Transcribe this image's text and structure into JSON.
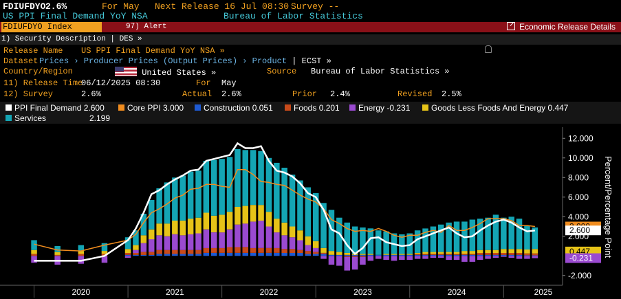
{
  "header": {
    "ticker": "FDIUFDYO",
    "last_value": "2.6%",
    "for_label": "For May",
    "next_release": "Next Release 16 Jul 08:30",
    "survey": "Survey --",
    "title": "US PPI Final Demand YoY NSA",
    "source": "Bureau of Labor Statistics"
  },
  "toolbar": {
    "index": "FDIUFDYO Index",
    "alert_num": "97)",
    "alert": "Alert",
    "economic_release": "Economic Release Details"
  },
  "security": {
    "desc": "1) Security Description  | DES »"
  },
  "info": {
    "release_name_label": "Release Name",
    "release_name": "US PPI Final Demand YoY NSA »",
    "dataset_label": "Dataset",
    "dataset_path": "Prices › Producer Prices (Output Prices) › Product",
    "dataset_ecst": "| ECST »",
    "country_label": "Country/Region",
    "country": "United States »",
    "source_label": "Source",
    "source": "Bureau of Labor Statistics »",
    "release_time_label": "11) Release Time",
    "release_time": "06/12/2025 08:30",
    "for_label": "For",
    "for_value": "May",
    "survey_label": "12) Survey",
    "survey_value": "2.6%",
    "actual_label": "Actual",
    "actual_value": "2.6%",
    "prior_label": "Prior",
    "prior_value": "2.4%",
    "revised_label": "Revised",
    "revised_value": "2.5%"
  },
  "legend": [
    {
      "label": "PPI Final Demand",
      "value": "2.600",
      "color": "#ffffff"
    },
    {
      "label": "Core PPI",
      "value": "3.000",
      "color": "#f08c1e"
    },
    {
      "label": "Construction",
      "value": "0.051",
      "color": "#1e5ad2"
    },
    {
      "label": "Foods",
      "value": "0.201",
      "color": "#c84a1a"
    },
    {
      "label": "Energy",
      "value": "-0.231",
      "color": "#9a4ad0"
    },
    {
      "label": "Goods Less Foods And Energy",
      "value": "0.447",
      "color": "#e6c318"
    },
    {
      "label": "Services",
      "value": "2.199",
      "color": "#14a5b4"
    }
  ],
  "chart_data": {
    "type": "bar",
    "ylabel": "Percent/Percentage Point",
    "ylim": [
      -3.0,
      13.0
    ],
    "yticks": [
      "12.000",
      "10.000",
      "8.000",
      "6.000",
      "4.000",
      "2.000",
      "-2.000"
    ],
    "xticks": [
      "2020",
      "2021",
      "2022",
      "2023",
      "2024",
      "2025"
    ],
    "x": [
      "2020-01",
      "2020-04",
      "2020-07",
      "2020-10",
      "2021-01",
      "2021-02",
      "2021-03",
      "2021-04",
      "2021-05",
      "2021-06",
      "2021-07",
      "2021-08",
      "2021-09",
      "2021-10",
      "2021-11",
      "2021-12",
      "2022-01",
      "2022-02",
      "2022-03",
      "2022-04",
      "2022-05",
      "2022-06",
      "2022-07",
      "2022-08",
      "2022-09",
      "2022-10",
      "2022-11",
      "2022-12",
      "2023-01",
      "2023-02",
      "2023-03",
      "2023-04",
      "2023-05",
      "2023-06",
      "2023-07",
      "2023-08",
      "2023-09",
      "2023-10",
      "2023-11",
      "2023-12",
      "2024-01",
      "2024-02",
      "2024-03",
      "2024-04",
      "2024-05",
      "2024-06",
      "2024-07",
      "2024-08",
      "2024-09",
      "2024-10",
      "2024-11",
      "2024-12",
      "2025-01",
      "2025-02",
      "2025-03",
      "2025-04",
      "2025-05"
    ],
    "series": [
      {
        "name": "Construction",
        "values": [
          0.0,
          0.0,
          0.0,
          0.0,
          0.1,
          0.1,
          0.1,
          0.1,
          0.2,
          0.2,
          0.2,
          0.2,
          0.2,
          0.2,
          0.3,
          0.3,
          0.3,
          0.3,
          0.3,
          0.3,
          0.3,
          0.3,
          0.3,
          0.3,
          0.3,
          0.3,
          0.3,
          0.2,
          0.2,
          0.2,
          0.1,
          0.1,
          0.1,
          0.1,
          0.1,
          0.1,
          0.1,
          0.1,
          0.1,
          0.1,
          0.1,
          0.1,
          0.1,
          0.1,
          0.1,
          0.1,
          0.1,
          0.1,
          0.1,
          0.1,
          0.1,
          0.1,
          0.1,
          0.1,
          0.1,
          0.05,
          0.05
        ]
      },
      {
        "name": "Foods",
        "values": [
          0.2,
          0.1,
          0.2,
          0.2,
          0.2,
          0.2,
          0.3,
          0.3,
          0.4,
          0.4,
          0.4,
          0.4,
          0.4,
          0.4,
          0.5,
          0.5,
          0.5,
          0.6,
          0.6,
          0.6,
          0.5,
          0.5,
          0.5,
          0.5,
          0.4,
          0.4,
          0.3,
          0.3,
          0.2,
          0.1,
          0.0,
          0.0,
          -0.1,
          -0.1,
          -0.1,
          0.0,
          0.0,
          0.0,
          0.0,
          0.0,
          0.0,
          0.1,
          0.1,
          0.1,
          0.1,
          0.1,
          0.1,
          0.1,
          0.1,
          0.2,
          0.2,
          0.2,
          0.2,
          0.2,
          0.2,
          0.2,
          0.2
        ]
      },
      {
        "name": "Energy",
        "values": [
          -0.7,
          -0.9,
          -0.8,
          -0.7,
          -0.2,
          0.3,
          0.9,
          1.3,
          1.5,
          1.4,
          1.6,
          1.5,
          1.6,
          1.7,
          1.9,
          1.6,
          1.6,
          1.8,
          2.3,
          2.4,
          2.7,
          2.8,
          2.2,
          1.6,
          1.4,
          1.2,
          1.0,
          0.6,
          0.4,
          -0.3,
          -0.9,
          -1.0,
          -1.4,
          -1.3,
          -0.8,
          -0.5,
          -0.3,
          -0.4,
          -0.5,
          -0.4,
          -0.4,
          -0.3,
          -0.3,
          -0.2,
          -0.2,
          -0.4,
          -0.4,
          -0.6,
          -0.6,
          -0.4,
          -0.3,
          -0.2,
          -0.1,
          -0.2,
          -0.3,
          -0.3,
          -0.23
        ]
      },
      {
        "name": "Goods Less Foods And Energy",
        "values": [
          0.4,
          0.3,
          0.3,
          0.3,
          0.4,
          0.5,
          0.8,
          1.0,
          1.2,
          1.3,
          1.4,
          1.5,
          1.6,
          1.6,
          1.7,
          1.7,
          1.8,
          1.8,
          1.8,
          1.8,
          1.7,
          1.6,
          1.5,
          1.4,
          1.3,
          1.1,
          1.0,
          0.9,
          0.7,
          0.5,
          0.4,
          0.3,
          0.2,
          0.1,
          0.1,
          0.1,
          0.0,
          0.1,
          0.1,
          0.1,
          0.1,
          0.1,
          0.2,
          0.2,
          0.2,
          0.2,
          0.2,
          0.3,
          0.3,
          0.3,
          0.3,
          0.3,
          0.4,
          0.4,
          0.4,
          0.4,
          0.45
        ]
      },
      {
        "name": "Services",
        "values": [
          1.0,
          0.6,
          0.6,
          0.8,
          1.2,
          1.5,
          2.2,
          3.0,
          3.6,
          4.2,
          4.4,
          4.6,
          4.8,
          4.8,
          5.3,
          5.7,
          5.7,
          5.6,
          5.9,
          5.7,
          5.6,
          5.5,
          5.5,
          5.7,
          5.6,
          5.3,
          5.1,
          5.0,
          4.9,
          4.6,
          4.2,
          3.5,
          3.1,
          2.8,
          2.7,
          2.6,
          2.5,
          2.3,
          2.1,
          2.0,
          2.1,
          2.3,
          2.4,
          2.6,
          2.8,
          3.0,
          3.1,
          3.0,
          3.2,
          3.2,
          3.3,
          3.6,
          3.2,
          3.3,
          3.1,
          2.4,
          2.2
        ]
      },
      {
        "name": "PPI Final Demand",
        "type": "line",
        "values": [
          -0.5,
          -0.5,
          -0.5,
          0.0,
          1.6,
          2.8,
          4.4,
          6.3,
          6.7,
          7.3,
          7.8,
          8.2,
          8.7,
          8.8,
          9.7,
          9.9,
          10.1,
          10.3,
          11.5,
          11.0,
          11.0,
          11.2,
          9.7,
          8.7,
          8.5,
          8.1,
          7.4,
          6.4,
          6.0,
          4.7,
          2.7,
          2.3,
          1.1,
          0.2,
          0.8,
          1.8,
          1.9,
          1.4,
          1.2,
          1.0,
          1.1,
          1.7,
          2.0,
          2.3,
          2.6,
          2.9,
          2.3,
          1.9,
          2.0,
          2.6,
          3.1,
          3.5,
          3.7,
          3.4,
          2.9,
          2.5,
          2.6
        ]
      },
      {
        "name": "Core PPI",
        "type": "line",
        "values": [
          1.2,
          0.6,
          0.5,
          1.1,
          1.6,
          2.2,
          3.4,
          4.4,
          4.8,
          5.3,
          5.9,
          6.2,
          6.8,
          6.9,
          7.3,
          7.3,
          7.1,
          7.0,
          8.8,
          8.8,
          8.3,
          7.6,
          7.5,
          7.3,
          7.2,
          6.7,
          6.2,
          5.8,
          5.5,
          4.8,
          3.7,
          3.3,
          2.8,
          2.5,
          2.6,
          2.5,
          2.8,
          2.5,
          2.1,
          1.9,
          2.1,
          2.1,
          2.4,
          2.6,
          2.4,
          3.1,
          2.6,
          2.6,
          2.9,
          3.3,
          3.8,
          3.8,
          3.8,
          3.6,
          3.1,
          3.1,
          3.0
        ]
      }
    ],
    "last_value_tags": [
      {
        "value": "3.000",
        "color": "#f08c1e"
      },
      {
        "value": "2.600",
        "color": "#ffffff"
      },
      {
        "value": "0.447",
        "color": "#e6c318"
      },
      {
        "value": "-0.231",
        "color": "#9a4ad0"
      }
    ],
    "grid": false
  }
}
